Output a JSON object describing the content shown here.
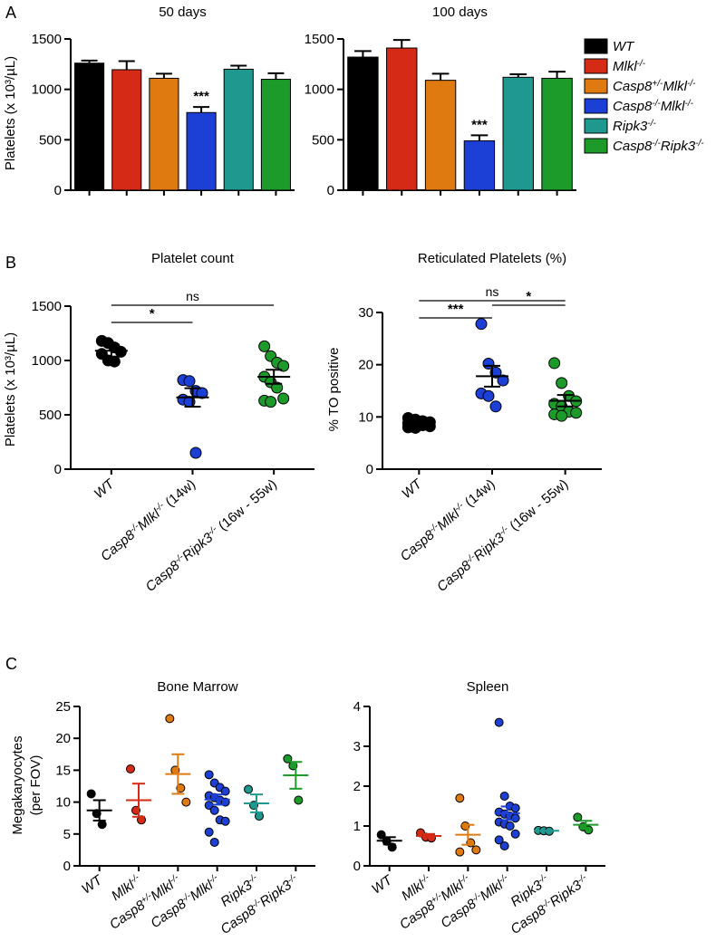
{
  "panels": {
    "a": "A",
    "b": "B",
    "c": "C"
  },
  "colors": {
    "WT": "#000000",
    "Mlkl": "#d42a16",
    "Casp8het_Mlkl": "#de7a10",
    "Casp8_Mlkl": "#1c3fd6",
    "Ripk3": "#1f9890",
    "Casp8_Ripk3": "#1c9a2a"
  },
  "legend": [
    {
      "key": "WT",
      "base": "WT",
      "sup": ""
    },
    {
      "key": "Mlkl",
      "base": "Mlkl",
      "sup": "-/-"
    },
    {
      "key": "Casp8het_Mlkl",
      "base": "Casp8",
      "sup": "+/-",
      "base2": "Mlkl",
      "sup2": "-/-"
    },
    {
      "key": "Casp8_Mlkl",
      "base": "Casp8",
      "sup": "-/-",
      "base2": "Mlkl",
      "sup2": "-/-"
    },
    {
      "key": "Ripk3",
      "base": "Ripk3",
      "sup": "-/-"
    },
    {
      "key": "Casp8_Ripk3",
      "base": "Casp8",
      "sup": "-/-",
      "base2": "Ripk3",
      "sup2": "-/-"
    }
  ],
  "chart_data": [
    {
      "id": "A1",
      "type": "bar",
      "title": "50 days",
      "ylabel": "Platelets (x 10³/µL)",
      "ylim": [
        0,
        1500
      ],
      "yticks": [
        0,
        500,
        1000,
        1500
      ],
      "series": [
        {
          "key": "WT",
          "value": 1260,
          "err": 25
        },
        {
          "key": "Mlkl",
          "value": 1195,
          "err": 85
        },
        {
          "key": "Casp8het_Mlkl",
          "value": 1110,
          "err": 45
        },
        {
          "key": "Casp8_Mlkl",
          "value": 770,
          "err": 55,
          "sig": "***"
        },
        {
          "key": "Ripk3",
          "value": 1200,
          "err": 35
        },
        {
          "key": "Casp8_Ripk3",
          "value": 1100,
          "err": 60
        }
      ]
    },
    {
      "id": "A2",
      "type": "bar",
      "title": "100 days",
      "ylabel": "",
      "ylim": [
        0,
        1500
      ],
      "yticks": [
        0,
        500,
        1000,
        1500
      ],
      "series": [
        {
          "key": "WT",
          "value": 1320,
          "err": 60
        },
        {
          "key": "Mlkl",
          "value": 1410,
          "err": 80
        },
        {
          "key": "Casp8het_Mlkl",
          "value": 1090,
          "err": 65
        },
        {
          "key": "Casp8_Mlkl",
          "value": 490,
          "err": 55,
          "sig": "***"
        },
        {
          "key": "Ripk3",
          "value": 1120,
          "err": 30
        },
        {
          "key": "Casp8_Ripk3",
          "value": 1110,
          "err": 65
        }
      ]
    },
    {
      "id": "B1",
      "type": "scatter",
      "title": "Platelet count",
      "ylabel": "Platelets (x 10³/µL)",
      "ylim": [
        0,
        1500
      ],
      "yticks": [
        0,
        500,
        1000,
        1500
      ],
      "groups": [
        {
          "key": "WT",
          "label": "WT",
          "mean": 1090,
          "sem": 55,
          "values": [
            1180,
            1160,
            1120,
            1080,
            1060,
            1000,
            990
          ]
        },
        {
          "key": "Casp8_Mlkl",
          "label": "Casp8-/-Mlkl-/- (14w)",
          "mean": 660,
          "sem": 85,
          "values": [
            820,
            810,
            720,
            700,
            640,
            620,
            150
          ]
        },
        {
          "key": "Casp8_Ripk3",
          "label": "Casp8-/-Ripk3-/- (16w - 55w)",
          "mean": 850,
          "sem": 65,
          "values": [
            1130,
            1040,
            980,
            950,
            850,
            800,
            750,
            650,
            630,
            620
          ]
        }
      ],
      "comparisons": [
        {
          "from": 0,
          "to": 1,
          "label": "*"
        },
        {
          "from": 0,
          "to": 2,
          "label": "ns"
        }
      ]
    },
    {
      "id": "B2",
      "type": "scatter",
      "title": "Reticulated Platelets (%)",
      "ylabel": "% TO positive",
      "ylim": [
        0,
        30
      ],
      "yticks": [
        0,
        10,
        20,
        30
      ],
      "groups": [
        {
          "key": "WT",
          "label": "WT",
          "mean": 8.9,
          "sem": 0.3,
          "values": [
            9.8,
            9.5,
            9.2,
            9.0,
            8.8,
            8.6,
            8.4,
            8.2,
            8.0,
            7.9
          ]
        },
        {
          "key": "Casp8_Mlkl",
          "label": "Casp8-/-Mlkl-/- (14w)",
          "mean": 17.8,
          "sem": 2.0,
          "values": [
            27.8,
            20.2,
            18.5,
            17.0,
            14.5,
            14.0,
            12.0
          ]
        },
        {
          "key": "Casp8_Ripk3",
          "label": "Casp8-/-Ripk3-/- (16w - 55w)",
          "mean": 13.1,
          "sem": 1.1,
          "values": [
            20.3,
            16.5,
            14.0,
            13.0,
            12.5,
            12.0,
            11.0,
            10.8,
            10.5,
            10.2
          ]
        }
      ],
      "comparisons": [
        {
          "from": 0,
          "to": 1,
          "label": "***"
        },
        {
          "from": 0,
          "to": 2,
          "label": "ns"
        },
        {
          "from": 1,
          "to": 2,
          "label": "*"
        }
      ]
    },
    {
      "id": "C1",
      "type": "scatter",
      "title": "Bone Marrow",
      "ylabel": "Megakaryocytes (per FOV)",
      "ylim": [
        0,
        25
      ],
      "yticks": [
        0,
        5,
        10,
        15,
        20,
        25
      ],
      "groups": [
        {
          "key": "WT",
          "label": "WT",
          "mean": 8.7,
          "sem": 1.6,
          "values": [
            11.3,
            8.2,
            6.5
          ]
        },
        {
          "key": "Mlkl",
          "label": "Mlkl-/-",
          "mean": 10.3,
          "sem": 2.6,
          "values": [
            15.2,
            8.7,
            7.2
          ]
        },
        {
          "key": "Casp8het_Mlkl",
          "label": "Casp8+/-Mlkl-/-",
          "mean": 14.4,
          "sem": 3.1,
          "values": [
            23.1,
            15.0,
            12.2,
            10.0
          ]
        },
        {
          "key": "Casp8_Mlkl",
          "label": "Casp8-/-Mlkl-/-",
          "mean": 10.4,
          "sem": 0.8,
          "values": [
            14.3,
            13.0,
            12.3,
            11.7,
            11.0,
            10.7,
            10.3,
            10.0,
            9.5,
            8.7,
            7.2,
            7.0,
            5.3,
            3.7
          ]
        },
        {
          "key": "Ripk3",
          "label": "Ripk3-/-",
          "mean": 9.8,
          "sem": 1.4,
          "values": [
            12.0,
            9.5,
            7.8
          ]
        },
        {
          "key": "Casp8_Ripk3",
          "label": "Casp8-/-Ripk3-/-",
          "mean": 14.2,
          "sem": 2.1,
          "values": [
            16.8,
            15.7,
            10.3
          ]
        }
      ]
    },
    {
      "id": "C2",
      "type": "scatter",
      "title": "Spleen",
      "ylabel": "",
      "ylim": [
        0,
        4
      ],
      "yticks": [
        0,
        1,
        2,
        3,
        4
      ],
      "groups": [
        {
          "key": "WT",
          "label": "WT",
          "mean": 0.63,
          "sem": 0.09,
          "values": [
            0.78,
            0.62,
            0.47
          ]
        },
        {
          "key": "Mlkl",
          "label": "Mlkl-/-",
          "mean": 0.75,
          "sem": 0.05,
          "values": [
            0.83,
            0.72,
            0.7
          ]
        },
        {
          "key": "Casp8het_Mlkl",
          "label": "Casp8+/-Mlkl-/-",
          "mean": 0.78,
          "sem": 0.25,
          "values": [
            1.7,
            1.0,
            0.58,
            0.4,
            0.35
          ]
        },
        {
          "key": "Casp8_Mlkl",
          "label": "Casp8-/-Mlkl-/-",
          "mean": 1.32,
          "sem": 0.17,
          "values": [
            3.6,
            1.75,
            1.5,
            1.45,
            1.35,
            1.3,
            1.25,
            1.2,
            1.1,
            1.05,
            1.0,
            0.8,
            0.65,
            0.5
          ]
        },
        {
          "key": "Ripk3",
          "label": "Ripk3-/-",
          "mean": 0.88,
          "sem": 0.01,
          "values": [
            0.89,
            0.88,
            0.87
          ]
        },
        {
          "key": "Casp8_Ripk3",
          "label": "Casp8-/-Ripk3-/-",
          "mean": 1.03,
          "sem": 0.1,
          "values": [
            1.22,
            0.98,
            0.9
          ]
        }
      ]
    }
  ]
}
